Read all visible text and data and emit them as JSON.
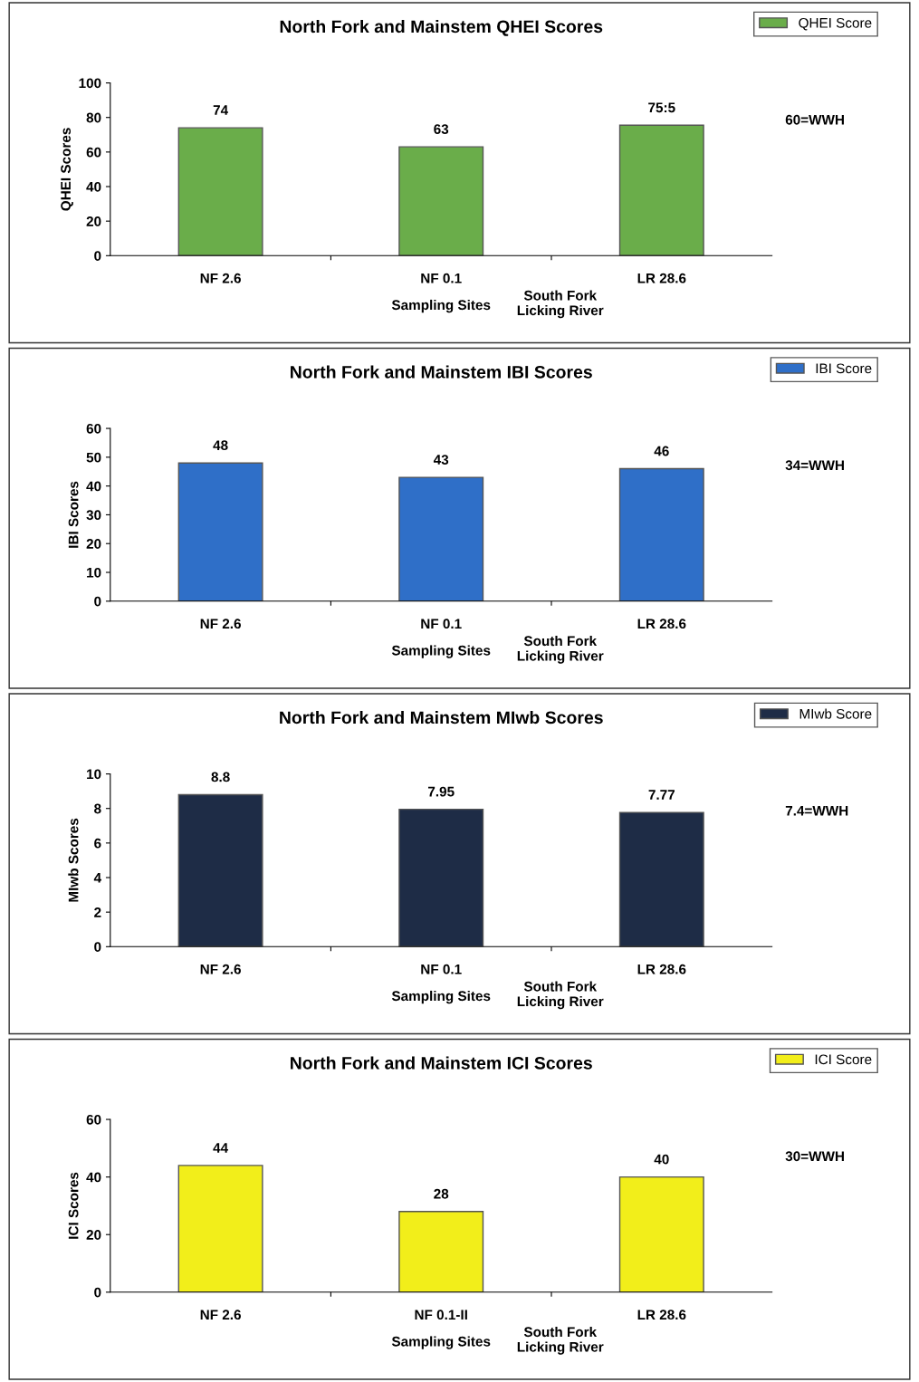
{
  "chart_data": [
    {
      "type": "bar",
      "title": "North Fork and Mainstem QHEI Scores",
      "xlabel": "Sampling Sites",
      "ylabel": "QHEI Scores",
      "categories": [
        "NF 2.6",
        "NF 0.1",
        "LR 28.6"
      ],
      "series": [
        {
          "name": "QHEI Score",
          "color": "#6aad4a",
          "values": [
            74,
            63,
            75.5
          ],
          "value_labels": [
            "74",
            "63",
            "75:5"
          ]
        }
      ],
      "ylim": [
        0,
        100
      ],
      "yticks": [
        0,
        20,
        40,
        60,
        80,
        100
      ],
      "legend": "top right",
      "grid": false,
      "annotations": [
        "60=WWH",
        "South Fork\nLicking River"
      ]
    },
    {
      "type": "bar",
      "title": "North Fork and Mainstem IBI Scores",
      "xlabel": "Sampling Sites",
      "ylabel": "IBI Scores",
      "categories": [
        "NF 2.6",
        "NF 0.1",
        "LR 28.6"
      ],
      "series": [
        {
          "name": "IBI Score",
          "color": "#2f6fc8",
          "values": [
            48,
            43,
            46
          ],
          "value_labels": [
            "48",
            "43",
            "46"
          ]
        }
      ],
      "ylim": [
        0,
        60
      ],
      "yticks": [
        0,
        10,
        20,
        30,
        40,
        50,
        60
      ],
      "legend": "top right",
      "grid": false,
      "annotations": [
        "34=WWH",
        "South Fork\nLicking River"
      ]
    },
    {
      "type": "bar",
      "title": "North Fork and Mainstem MIwb Scores",
      "xlabel": "Sampling Sites",
      "ylabel": "MIwb Scores",
      "categories": [
        "NF 2.6",
        "NF 0.1",
        "LR 28.6"
      ],
      "series": [
        {
          "name": "MIwb Score",
          "color": "#1e2c46",
          "values": [
            8.8,
            7.95,
            7.77
          ],
          "value_labels": [
            "8.8",
            "7.95",
            "7.77"
          ]
        }
      ],
      "ylim": [
        0,
        10
      ],
      "yticks": [
        0,
        2,
        4,
        6,
        8,
        10
      ],
      "legend": "top right",
      "grid": false,
      "annotations": [
        "7.4=WWH",
        "South Fork\nLicking River"
      ]
    },
    {
      "type": "bar",
      "title": "North Fork and Mainstem ICI Scores",
      "xlabel": "Sampling Sites",
      "ylabel": "ICI Scores",
      "categories": [
        "NF 2.6",
        "NF 0.1-II",
        "LR 28.6"
      ],
      "series": [
        {
          "name": "ICI Score",
          "color": "#f2ee1a",
          "values": [
            44,
            28,
            40
          ],
          "value_labels": [
            "44",
            "28",
            "40"
          ]
        }
      ],
      "ylim": [
        0,
        60
      ],
      "yticks": [
        0,
        20,
        40,
        60
      ],
      "legend": "top right",
      "grid": false,
      "annotations": [
        "30=WWH",
        "South Fork\nLicking River"
      ]
    }
  ]
}
